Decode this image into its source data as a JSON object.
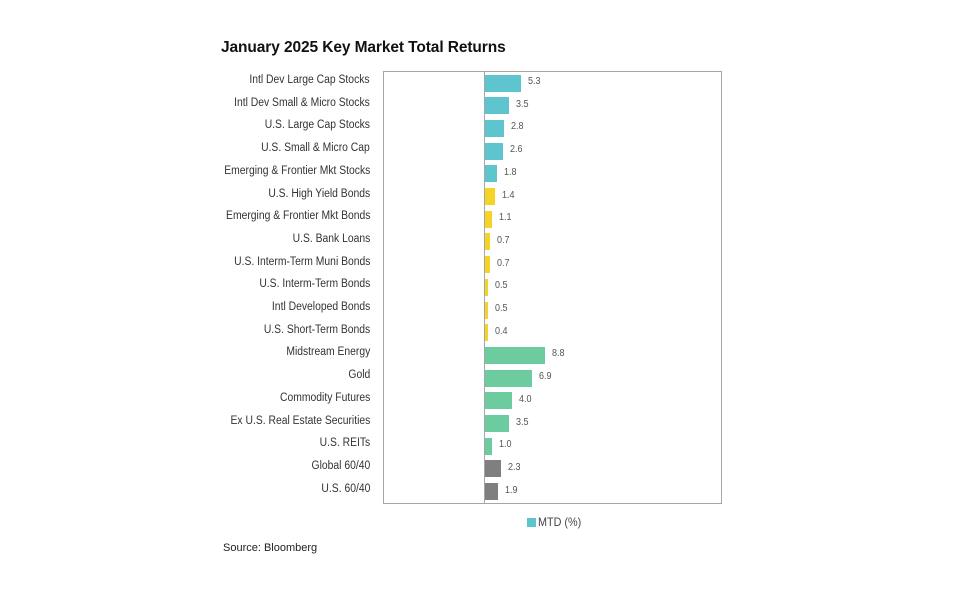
{
  "title": "January 2025 Key Market Total Returns",
  "legend": {
    "label": "MTD (%)",
    "color": "#5ec5cf"
  },
  "source": "Source: Bloomberg",
  "colors": {
    "equity": "#5ec5cf",
    "fixed_income": "#f5d327",
    "real_assets": "#6dcba0",
    "balanced": "#7f7f7f"
  },
  "chart_data": {
    "type": "bar",
    "orientation": "horizontal",
    "title": "January 2025 Key Market Total Returns",
    "xlabel": "",
    "ylabel": "",
    "legend": [
      "MTD (%)"
    ],
    "legend_position": "bottom",
    "grid": false,
    "categories": [
      "Intl Dev Large Cap Stocks",
      "Intl Dev Small & Micro Stocks",
      "U.S. Large Cap Stocks",
      "U.S. Small & Micro Cap",
      "Emerging & Frontier Mkt Stocks",
      "U.S. High Yield Bonds",
      "Emerging & Frontier Mkt Bonds",
      "U.S. Bank Loans",
      "U.S. Interm-Term Muni Bonds",
      "U.S. Interm-Term Bonds",
      "Intl Developed Bonds",
      "U.S. Short-Term Bonds",
      "Midstream Energy",
      "Gold",
      "Commodity Futures",
      "Ex U.S. Real Estate Securities",
      "U.S. REITs",
      "Global 60/40",
      "U.S. 60/40"
    ],
    "series": [
      {
        "name": "MTD (%)",
        "values": [
          5.3,
          3.5,
          2.8,
          2.6,
          1.8,
          1.4,
          1.1,
          0.7,
          0.7,
          0.5,
          0.5,
          0.4,
          8.8,
          6.9,
          4.0,
          3.5,
          1.0,
          2.3,
          1.9
        ]
      }
    ],
    "value_labels": [
      "5.3",
      "3.5",
      "2.8",
      "2.6",
      "1.8",
      "1.4",
      "1.1",
      "0.7",
      "0.7",
      "0.5",
      "0.5",
      "0.4",
      "8.8",
      "6.9",
      "4.0",
      "3.5",
      "1.0",
      "2.3",
      "1.9"
    ],
    "bar_groups": [
      "equity",
      "equity",
      "equity",
      "equity",
      "equity",
      "fixed_income",
      "fixed_income",
      "fixed_income",
      "fixed_income",
      "fixed_income",
      "fixed_income",
      "fixed_income",
      "real_assets",
      "real_assets",
      "real_assets",
      "real_assets",
      "real_assets",
      "balanced",
      "balanced"
    ],
    "xlim": [
      -14.8,
      34.8
    ]
  }
}
